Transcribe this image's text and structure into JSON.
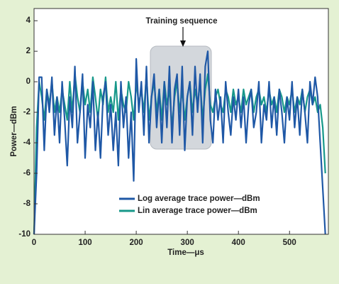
{
  "chart_data": {
    "type": "line",
    "annotation": "Training sequence",
    "xlabel": "Time—μs",
    "ylabel": "Power—dBm",
    "x": [
      0,
      5,
      10,
      15,
      20,
      25,
      30,
      35,
      40,
      45,
      50,
      55,
      60,
      65,
      70,
      75,
      80,
      85,
      90,
      95,
      100,
      105,
      110,
      115,
      120,
      125,
      130,
      135,
      140,
      145,
      150,
      155,
      160,
      165,
      170,
      175,
      180,
      185,
      190,
      195,
      200,
      205,
      210,
      215,
      220,
      225,
      230,
      235,
      240,
      245,
      250,
      255,
      260,
      265,
      270,
      275,
      280,
      285,
      290,
      295,
      300,
      305,
      310,
      315,
      320,
      325,
      330,
      335,
      340,
      345,
      350,
      355,
      360,
      365,
      370,
      375,
      380,
      385,
      390,
      395,
      400,
      405,
      410,
      415,
      420,
      425,
      430,
      435,
      440,
      445,
      450,
      455,
      460,
      465,
      470,
      475,
      480,
      485,
      490,
      495,
      500,
      505,
      510,
      515,
      520,
      525,
      530,
      535,
      540,
      545,
      550,
      555,
      560,
      565,
      570
    ],
    "series": [
      {
        "name": "Log average trace power—dBm",
        "color": "#1f58a6",
        "values": [
          -10,
          -6,
          0.3,
          0.3,
          -4.5,
          -0.5,
          -2,
          0.3,
          -3.5,
          -1,
          -4,
          0,
          -2.5,
          -5.5,
          -1,
          -3,
          1,
          -4,
          -2,
          0.5,
          -5,
          -1.5,
          -3,
          0,
          -4.5,
          -2,
          -5,
          -1,
          0,
          -3.5,
          -1.5,
          -4.5,
          -2,
          -5.5,
          0,
          -3,
          -1,
          -5,
          -2,
          -6.5,
          1.5,
          -2,
          0,
          -3.5,
          1,
          -4,
          -1,
          0.5,
          -3,
          -0.5,
          -4,
          0,
          -3,
          1,
          -4,
          -0.5,
          0.5,
          -3.5,
          1,
          -4.5,
          -1,
          0,
          -3.5,
          1,
          -2,
          0.5,
          -4,
          1,
          2,
          -2.5,
          -4,
          -0.5,
          -2.5,
          -1,
          -4,
          0,
          -2,
          -3.5,
          -1,
          -2.5,
          -0.5,
          -3,
          -1,
          -4,
          -1.5,
          -0.5,
          -3,
          -2,
          0,
          -4,
          -1.5,
          -2.5,
          0,
          -3,
          -1,
          -3.5,
          -0.5,
          -2,
          -4,
          -1,
          -2.5,
          0,
          -3,
          -1,
          -3.5,
          -0.5,
          -2,
          -4,
          0,
          -1.5,
          0.3,
          -1,
          -4,
          -7,
          -10
        ]
      },
      {
        "name": "Lin average trace power—dBm",
        "color": "#17988a",
        "values": [
          -10,
          -3,
          0,
          -1,
          -2.5,
          -0.5,
          -1.5,
          0,
          -2,
          -1,
          -2,
          -0.5,
          -1.5,
          -2.5,
          0,
          -2,
          0.5,
          -1,
          -2,
          0,
          -1.5,
          -0.5,
          -2,
          0.3,
          -1,
          -2.5,
          -0.5,
          -1.5,
          0.3,
          -2,
          -1,
          -2,
          0,
          -2.5,
          -0.5,
          -1.5,
          -2,
          0,
          -1,
          -2.5,
          0,
          -1.5,
          -0.5,
          -2,
          0.5,
          -2.5,
          -1,
          0,
          -2,
          -0.5,
          -2.5,
          0,
          -1.5,
          -0.5,
          -3,
          -1,
          0,
          -2,
          -0.5,
          -2.5,
          -1,
          0,
          -2,
          -0.5,
          -1.5,
          0,
          -2.5,
          -0.5,
          0.5,
          -1.5,
          -2,
          -1,
          -0.5,
          -1.5,
          -2,
          -0.5,
          -1,
          -2,
          -0.5,
          -1.5,
          -1,
          -2,
          -0.5,
          -1.5,
          -1,
          -0.5,
          -2,
          -1,
          -0.5,
          -1.5,
          -1,
          -2,
          -0.5,
          -1.5,
          -1,
          -2,
          -0.5,
          -1,
          -2,
          -1,
          -1.5,
          -0.5,
          -2,
          -1,
          -1.5,
          -0.5,
          -2,
          -1,
          -0.5,
          -1.5,
          -1,
          -2,
          -1.5,
          -3,
          -6
        ]
      }
    ],
    "xlim": [
      0,
      576
    ],
    "xticks": [
      0,
      100,
      200,
      300,
      400,
      500
    ],
    "ylim": [
      -10,
      4.8
    ],
    "yticks": [
      4,
      2,
      0,
      -2,
      -4,
      -6,
      -8,
      -10
    ],
    "grid": false,
    "legend": "lower center"
  }
}
